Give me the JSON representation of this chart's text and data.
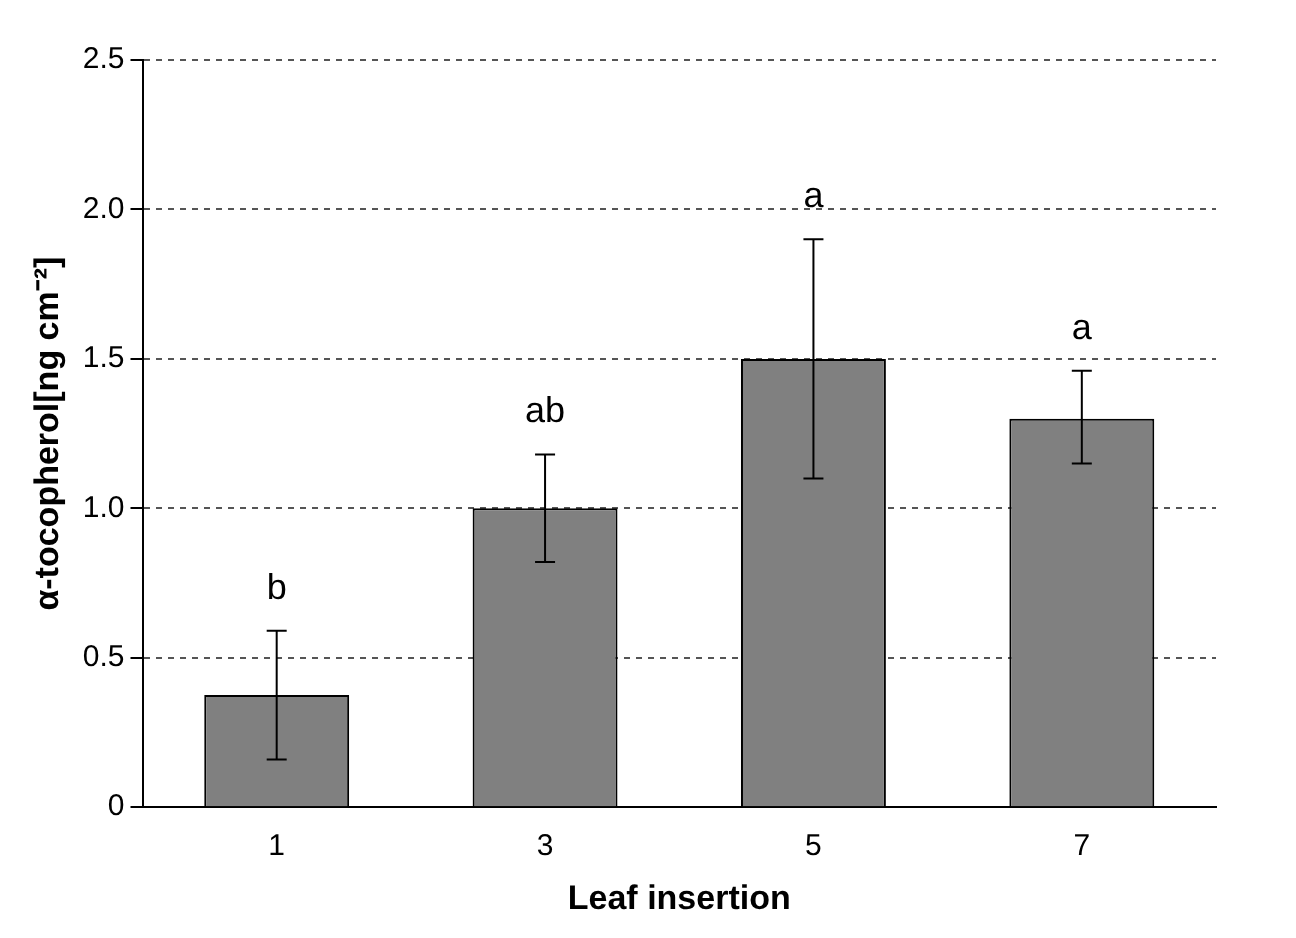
{
  "chart_data": {
    "type": "bar",
    "xlabel": "Leaf insertion",
    "ylabel": "α-tocopherol[ng cm⁻²]",
    "categories": [
      "1",
      "3",
      "5",
      "7"
    ],
    "values": [
      0.375,
      1.0,
      1.5,
      1.3
    ],
    "errors": [
      [
        0.16,
        0.59
      ],
      [
        0.82,
        1.18
      ],
      [
        1.1,
        1.9
      ],
      [
        1.15,
        1.46
      ]
    ],
    "color": "#808080",
    "ylim": [
      0,
      2.5
    ],
    "yticks": [
      0,
      {
        "value": 0.5,
        "label": "0.5"
      },
      {
        "value": 1,
        "label": "1.0"
      },
      {
        "value": 1.5,
        "label": "1.5"
      },
      {
        "value": 2,
        "label": "2.0"
      },
      {
        "value": 2.5,
        "label": "2.5"
      }
    ],
    "grid": "y",
    "legend": false,
    "annotations": [
      "b",
      "ab",
      "a",
      "a"
    ]
  }
}
